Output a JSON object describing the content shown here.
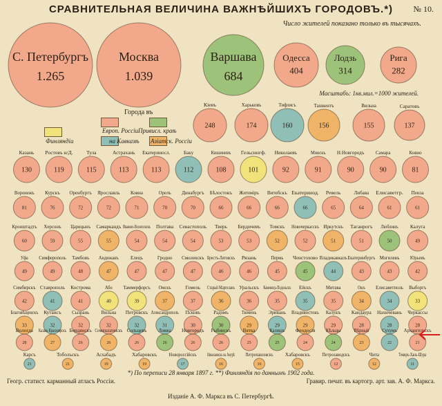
{
  "title": "СРАВНИТЕЛЬНАЯ ВЕЛИЧИНА ВАЖНѢЙШИХЪ ГОРОДОВЪ.*)",
  "sheet_number": "№ 10.",
  "subtitle": "Число жителей показано только въ тысячахъ.",
  "scale_note": "Масштабъ: 1кв.мил.=1000 жителей.",
  "legend": {
    "title": "Города въ",
    "items": [
      {
        "label": "Европ. Россіи",
        "color": "#f2a98b"
      },
      {
        "label": "Привисл. краѣ",
        "color": "#9dc27a"
      },
      {
        "label": "на Кавказѣ",
        "color": "#8fbfb6"
      },
      {
        "label": "Азіатск. Россіи",
        "color": "#f0b468"
      },
      {
        "label": "Финляндіи",
        "color": "#f1e37a"
      }
    ]
  },
  "footnote": "*) По переписи 28 января 1897 г. **) Финляндія по даннымъ 1902 года.",
  "publisher_left": "Геогр. статист. карманный атласъ Россіи.",
  "publisher_right": "Гравир. печат. въ картогр. арт. зав. А. Ф. Маркса.",
  "publisher_center": "Изданіе А. Ф. Маркса въ С. Петербургѣ.",
  "chart_data": {
    "type": "bubble",
    "value_unit": "тысячъ жителей",
    "cities": [
      {
        "name": "С. Петербургъ",
        "label": "1.265",
        "value": 1265,
        "group": "europe"
      },
      {
        "name": "Москва",
        "label": "1.039",
        "value": 1039,
        "group": "europe"
      },
      {
        "name": "Варшава",
        "label": "684",
        "value": 684,
        "group": "vistula"
      },
      {
        "name": "Одесса",
        "label": "404",
        "value": 404,
        "group": "europe"
      },
      {
        "name": "Лодзь",
        "label": "314",
        "value": 314,
        "group": "vistula"
      },
      {
        "name": "Рига",
        "label": "282",
        "value": 282,
        "group": "europe"
      },
      {
        "name": "Кіевъ",
        "label": "248",
        "value": 248,
        "group": "europe"
      },
      {
        "name": "Харьковъ",
        "label": "174",
        "value": 174,
        "group": "europe"
      },
      {
        "name": "Тифлисъ",
        "label": "160",
        "value": 160,
        "group": "caucasus"
      },
      {
        "name": "Ташкентъ",
        "label": "156",
        "value": 156,
        "group": "asia"
      },
      {
        "name": "Вильна",
        "label": "155",
        "value": 155,
        "group": "europe"
      },
      {
        "name": "Саратовъ",
        "label": "137",
        "value": 137,
        "group": "europe"
      },
      {
        "name": "Казань",
        "label": "130",
        "value": 130,
        "group": "europe"
      },
      {
        "name": "Ростовъ н/Д.",
        "label": "119",
        "value": 119,
        "group": "europe"
      },
      {
        "name": "Тула",
        "label": "115",
        "value": 115,
        "group": "europe"
      },
      {
        "name": "Астрахань",
        "label": "113",
        "value": 113,
        "group": "europe"
      },
      {
        "name": "Екатериносл.",
        "label": "113",
        "value": 113,
        "group": "europe"
      },
      {
        "name": "Баку",
        "label": "112",
        "value": 112,
        "group": "caucasus"
      },
      {
        "name": "Кишиневъ",
        "label": "108",
        "value": 108,
        "group": "europe"
      },
      {
        "name": "Гельсингф.",
        "label": "101",
        "value": 101,
        "group": "finland"
      },
      {
        "name": "Николаевъ",
        "label": "92",
        "value": 92,
        "group": "europe"
      },
      {
        "name": "Минскъ",
        "label": "91",
        "value": 91,
        "group": "europe"
      },
      {
        "name": "Н.Новгородъ",
        "label": "90",
        "value": 90,
        "group": "europe"
      },
      {
        "name": "Самара",
        "label": "90",
        "value": 90,
        "group": "europe"
      },
      {
        "name": "Ковно",
        "label": "81",
        "value": 81,
        "group": "europe"
      },
      {
        "name": "Воронежъ",
        "label": "81",
        "value": 81,
        "group": "europe"
      },
      {
        "name": "Курскъ",
        "label": "76",
        "value": 76,
        "group": "europe"
      },
      {
        "name": "Оренбургъ",
        "label": "72",
        "value": 72,
        "group": "europe"
      },
      {
        "name": "Ярославль",
        "label": "72",
        "value": 72,
        "group": "europe"
      },
      {
        "name": "Ковна",
        "label": "71",
        "value": 71,
        "group": "europe"
      },
      {
        "name": "Орелъ",
        "label": "70",
        "value": 70,
        "group": "europe"
      },
      {
        "name": "Динабургъ",
        "label": "70",
        "value": 70,
        "group": "europe"
      },
      {
        "name": "Бѣлостокъ",
        "label": "66",
        "value": 66,
        "group": "europe"
      },
      {
        "name": "Житоміръ",
        "label": "66",
        "value": 66,
        "group": "europe"
      },
      {
        "name": "Витебскъ",
        "label": "66",
        "value": 66,
        "group": "europe"
      },
      {
        "name": "Екатеринод.",
        "label": "66",
        "value": 66,
        "group": "caucasus"
      },
      {
        "name": "Ревель",
        "label": "65",
        "value": 65,
        "group": "europe"
      },
      {
        "name": "Либава",
        "label": "64",
        "value": 64,
        "group": "europe"
      },
      {
        "name": "Елисаветгр.",
        "label": "61",
        "value": 61,
        "group": "europe"
      },
      {
        "name": "Пенза",
        "label": "61",
        "value": 61,
        "group": "europe"
      },
      {
        "name": "Кронштадтъ",
        "label": "60",
        "value": 60,
        "group": "europe"
      },
      {
        "name": "Херсонъ",
        "label": "59",
        "value": 59,
        "group": "europe"
      },
      {
        "name": "Царицынъ",
        "label": "55",
        "value": 55,
        "group": "europe"
      },
      {
        "name": "Самаркандъ",
        "label": "55",
        "value": 55,
        "group": "asia"
      },
      {
        "name": "Иваново-Вознесенскъ",
        "label": "54",
        "value": 54,
        "group": "europe"
      },
      {
        "name": "Полтава",
        "label": "54",
        "value": 54,
        "group": "europe"
      },
      {
        "name": "Севастополь",
        "label": "54",
        "value": 54,
        "group": "europe"
      },
      {
        "name": "Тверь",
        "label": "53",
        "value": 53,
        "group": "europe"
      },
      {
        "name": "Бердичевъ",
        "label": "53",
        "value": 53,
        "group": "europe"
      },
      {
        "name": "Томскъ",
        "label": "52",
        "value": 52,
        "group": "asia"
      },
      {
        "name": "Новочеркасскъ",
        "label": "52",
        "value": 52,
        "group": "europe"
      },
      {
        "name": "Иркутскъ",
        "label": "51",
        "value": 51,
        "group": "asia"
      },
      {
        "name": "Таганрогъ",
        "label": "51",
        "value": 51,
        "group": "europe"
      },
      {
        "name": "Люблинъ",
        "label": "50",
        "value": 50,
        "group": "vistula"
      },
      {
        "name": "Калуга",
        "label": "49",
        "value": 49,
        "group": "europe"
      },
      {
        "name": "Уфа",
        "label": "49",
        "value": 49,
        "group": "europe"
      },
      {
        "name": "Симферополь",
        "label": "49",
        "value": 49,
        "group": "europe"
      },
      {
        "name": "Тамбовъ",
        "label": "48",
        "value": 48,
        "group": "europe"
      },
      {
        "name": "Андижанъ",
        "label": "47",
        "value": 47,
        "group": "asia"
      },
      {
        "name": "Елецъ",
        "label": "47",
        "value": 47,
        "group": "europe"
      },
      {
        "name": "Гродно",
        "label": "47",
        "value": 47,
        "group": "europe"
      },
      {
        "name": "Смоленскъ",
        "label": "47",
        "value": 47,
        "group": "europe"
      },
      {
        "name": "Брестъ-Литовскъ",
        "label": "46",
        "value": 46,
        "group": "europe"
      },
      {
        "name": "Рязань",
        "label": "46",
        "value": 46,
        "group": "europe"
      },
      {
        "name": "Пермь",
        "label": "45",
        "value": 45,
        "group": "europe"
      },
      {
        "name": "Ченстохово",
        "label": "45",
        "value": 45,
        "group": "vistula"
      },
      {
        "name": "Владикавказъ",
        "label": "44",
        "value": 44,
        "group": "caucasus"
      },
      {
        "name": "Екатеринбургъ",
        "label": "43",
        "value": 43,
        "group": "europe"
      },
      {
        "name": "Могилевъ",
        "label": "43",
        "value": 43,
        "group": "europe"
      },
      {
        "name": "Юрьевъ",
        "label": "42",
        "value": 42,
        "group": "europe"
      },
      {
        "name": "Симбирскъ",
        "label": "42",
        "value": 42,
        "group": "europe"
      },
      {
        "name": "Ставрополь",
        "label": "41",
        "value": 41,
        "group": "caucasus"
      },
      {
        "name": "Кострома",
        "label": "41",
        "value": 41,
        "group": "europe"
      },
      {
        "name": "Або",
        "label": "40",
        "value": 40,
        "group": "finland"
      },
      {
        "name": "Таммерфорсъ",
        "label": "39",
        "value": 39,
        "group": "finland"
      },
      {
        "name": "Омскъ",
        "label": "37",
        "value": 37,
        "group": "asia"
      },
      {
        "name": "Гомель",
        "label": "37",
        "value": 37,
        "group": "europe"
      },
      {
        "name": "Старый Маргеланъ",
        "label": "36",
        "value": 36,
        "group": "asia"
      },
      {
        "name": "Уральскъ",
        "label": "36",
        "value": 36,
        "group": "europe"
      },
      {
        "name": "Каменецъ-Подольскъ",
        "label": "35",
        "value": 35,
        "group": "europe"
      },
      {
        "name": "Ейскъ",
        "label": "35",
        "value": 35,
        "group": "caucasus"
      },
      {
        "name": "Митава",
        "label": "35",
        "value": 35,
        "group": "europe"
      },
      {
        "name": "Ошъ",
        "label": "34",
        "value": 34,
        "group": "asia"
      },
      {
        "name": "Елисаветполь",
        "label": "34",
        "value": 34,
        "group": "caucasus"
      },
      {
        "name": "Выборгъ",
        "label": "33",
        "value": 33,
        "group": "finland"
      },
      {
        "name": "Благовѣщенскъ",
        "label": "33",
        "value": 33,
        "group": "asia"
      },
      {
        "name": "Кутаисъ",
        "label": "32",
        "value": 32,
        "group": "caucasus"
      },
      {
        "name": "Сызрань",
        "label": "32",
        "value": 32,
        "group": "europe"
      },
      {
        "name": "Вильна",
        "label": "32",
        "value": 32,
        "group": "europe"
      },
      {
        "name": "Петровскъ",
        "label": "32",
        "value": 32,
        "group": "caucasus"
      },
      {
        "name": "Александрополь",
        "label": "31",
        "value": 31,
        "group": "caucasus"
      },
      {
        "name": "Псковъ",
        "label": "30",
        "value": 30,
        "group": "europe"
      },
      {
        "name": "Радомъ",
        "label": "30",
        "value": 30,
        "group": "vistula"
      },
      {
        "name": "Тюмень",
        "label": "29",
        "value": 29,
        "group": "asia"
      },
      {
        "name": "Эривань",
        "label": "29",
        "value": 29,
        "group": "caucasus"
      },
      {
        "name": "Владивостокъ",
        "label": "29",
        "value": 29,
        "group": "asia"
      },
      {
        "name": "Калушъ",
        "label": "29",
        "value": 29,
        "group": "europe"
      },
      {
        "name": "Кандаура",
        "label": "28",
        "value": 28,
        "group": "europe"
      },
      {
        "name": "Нахичевань",
        "label": "28",
        "value": 28,
        "group": "caucasus"
      },
      {
        "name": "Черкассы",
        "label": "28",
        "value": 28,
        "group": "europe"
      },
      {
        "name": "Вологда",
        "label": "28",
        "value": 28,
        "group": "europe"
      },
      {
        "name": "Казань Красноярскъ",
        "label": "27",
        "value": 27,
        "group": "asia"
      },
      {
        "name": "Бердянскъ",
        "label": "26",
        "value": 26,
        "group": "europe"
      },
      {
        "name": "Семипалатинскъ",
        "label": "26",
        "value": 26,
        "group": "asia"
      },
      {
        "name": "Сольцевъ",
        "label": "26",
        "value": 26,
        "group": "europe"
      },
      {
        "name": "Ломжа",
        "label": "26",
        "value": 26,
        "group": "vistula"
      },
      {
        "name": "Новгородъ",
        "label": "26",
        "value": 26,
        "group": "europe"
      },
      {
        "name": "Рыбинскъ",
        "label": "26",
        "value": 26,
        "group": "europe"
      },
      {
        "name": "Вятка",
        "label": "25",
        "value": 25,
        "group": "europe"
      },
      {
        "name": "Калишъ",
        "label": "25",
        "value": 25,
        "group": "vistula"
      },
      {
        "name": "Феодосія",
        "label": "24",
        "value": 24,
        "group": "europe"
      },
      {
        "name": "Кѣльцы",
        "label": "24",
        "value": 24,
        "group": "vistula"
      },
      {
        "name": "Вѣрный",
        "label": "23",
        "value": 23,
        "group": "asia"
      },
      {
        "name": "Сухумъ",
        "label": "22",
        "value": 22,
        "group": "caucasus"
      },
      {
        "name": "Архангельскъ",
        "label": "21",
        "value": 21,
        "group": "europe"
      },
      {
        "name": "Карсъ",
        "label": "21",
        "value": 21,
        "group": "caucasus"
      },
      {
        "name": "Тобольскъ",
        "label": "21",
        "value": 21,
        "group": "asia"
      },
      {
        "name": "Асхабадъ",
        "label": "19",
        "value": 19,
        "group": "asia"
      },
      {
        "name": "Хабаровскъ",
        "label": "19",
        "value": 19,
        "group": "asia"
      },
      {
        "name": "Новороссійскъ",
        "label": "17",
        "value": 17,
        "group": "caucasus"
      },
      {
        "name": "Николаевскъ на Амурѣ",
        "label": "16",
        "value": 16,
        "group": "asia"
      },
      {
        "name": "Петропавловскъ",
        "label": "16",
        "value": 16,
        "group": "asia"
      },
      {
        "name": "Хабаровскъ",
        "label": "15",
        "value": 15,
        "group": "asia"
      },
      {
        "name": "Петрозаводскъ",
        "label": "12",
        "value": 12,
        "group": "europe"
      },
      {
        "name": "Чита",
        "label": "12",
        "value": 12,
        "group": "asia"
      },
      {
        "name": "Темиръ-Ханъ-Шура",
        "label": "11",
        "value": 11,
        "group": "caucasus"
      },
      {
        "name": "Новый Маргеланъ",
        "label": "9",
        "value": 9,
        "group": "asia"
      },
      {
        "name": "Якутскъ",
        "label": "7",
        "value": 7,
        "group": "asia"
      },
      {
        "name": "Тургай",
        "label": "3",
        "value": 3,
        "group": "asia"
      }
    ],
    "group_colors": {
      "europe": "#f2a98b",
      "vistula": "#9dc27a",
      "caucasus": "#8fbfb6",
      "asia": "#f0b468",
      "finland": "#f1e37a"
    }
  }
}
